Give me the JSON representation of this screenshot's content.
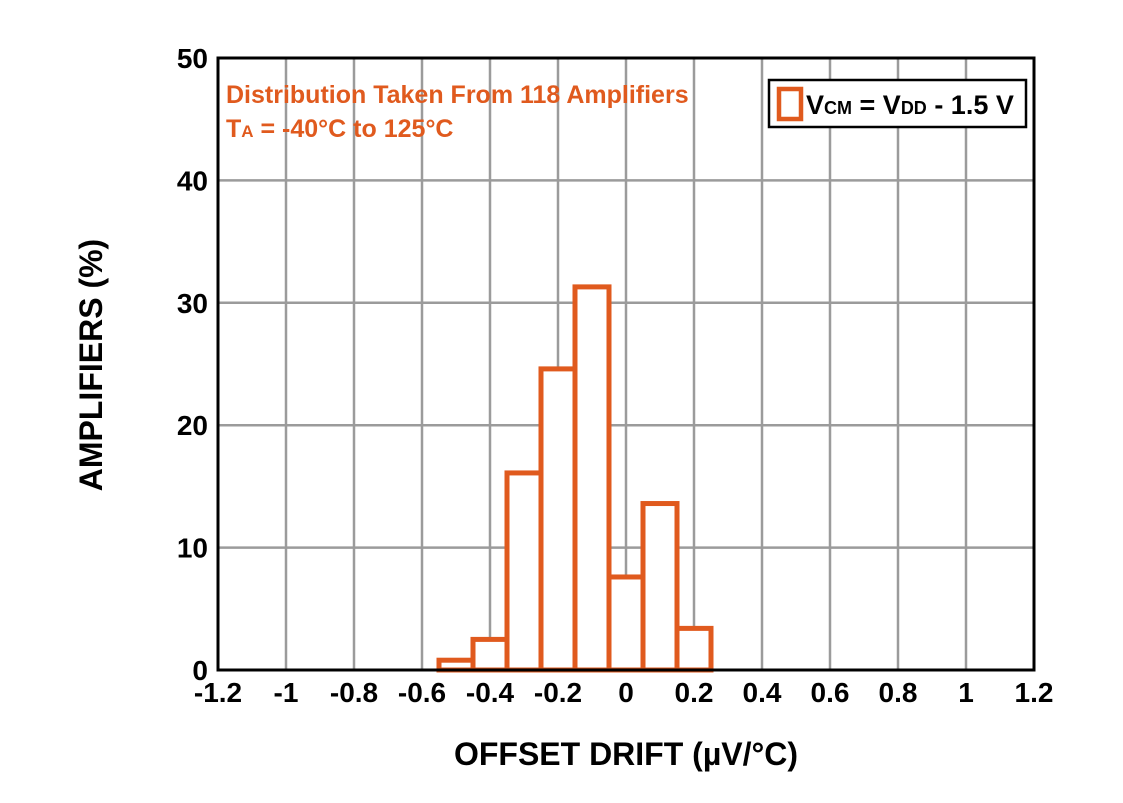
{
  "chart_data": {
    "type": "bar",
    "subtype": "histogram",
    "xlabel": "OFFSET DRIFT (µV/°C)",
    "ylabel": "AMPLIFIERS (%)",
    "xlim": [
      -1.2,
      1.2
    ],
    "ylim": [
      0,
      50
    ],
    "x_ticks": [
      "-1.2",
      "-1",
      "-0.8",
      "-0.6",
      "-0.4",
      "-0.2",
      "0",
      "0.2",
      "0.4",
      "0.6",
      "0.8",
      "1",
      "1.2"
    ],
    "y_ticks": [
      "0",
      "10",
      "20",
      "30",
      "40",
      "50"
    ],
    "grid": true,
    "annotation": {
      "line1": "Distribution Taken From 118 Amplifiers",
      "line2_prefix": "T",
      "line2_sub": "A",
      "line2_rest": " = -40°C to 125°C"
    },
    "legend": {
      "placement": "top-right",
      "v1": "V",
      "sub1": "CM",
      "eq": " = ",
      "v2": "V",
      "sub2": "DD",
      "rest": " - 1.5 V"
    },
    "bins": [
      {
        "start": -0.55,
        "end": -0.45,
        "value": 0.8
      },
      {
        "start": -0.45,
        "end": -0.35,
        "value": 2.5
      },
      {
        "start": -0.35,
        "end": -0.25,
        "value": 16.1
      },
      {
        "start": -0.25,
        "end": -0.15,
        "value": 24.6
      },
      {
        "start": -0.15,
        "end": -0.05,
        "value": 31.3
      },
      {
        "start": -0.05,
        "end": 0.05,
        "value": 7.6
      },
      {
        "start": 0.05,
        "end": 0.15,
        "value": 13.6
      },
      {
        "start": 0.15,
        "end": 0.25,
        "value": 3.4
      }
    ],
    "colors": {
      "bar": "#E05A1E",
      "grid": "#9b9b9b",
      "axis": "#000000",
      "annotation": "#E05A1E"
    }
  }
}
